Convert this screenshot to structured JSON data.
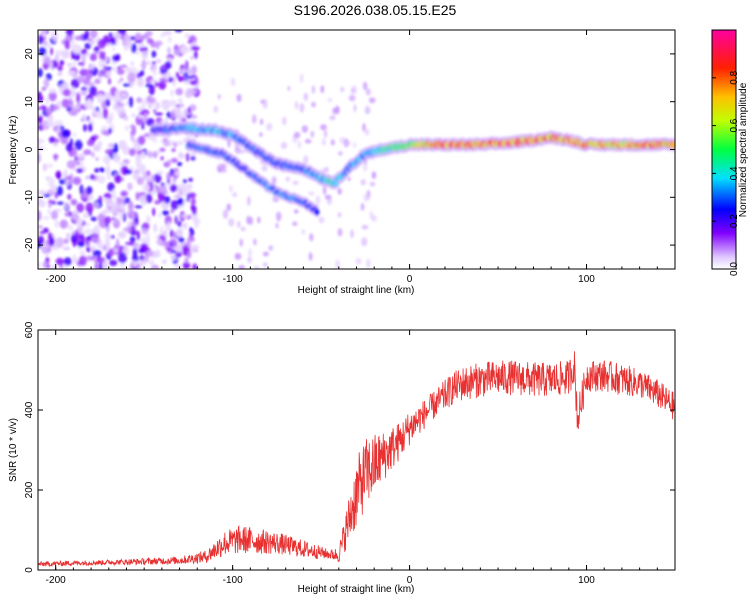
{
  "title": "S196.2026.038.05.15.E25",
  "chart_data": [
    {
      "type": "heatmap",
      "xlabel": "Height of straight line (km)",
      "ylabel": "Frequency (Hz)",
      "xlim": [
        -210,
        150
      ],
      "ylim": [
        -25,
        25
      ],
      "xticks": [
        -200,
        -100,
        0,
        100
      ],
      "yticks": [
        -20,
        -10,
        0,
        10,
        20
      ],
      "colorbar": {
        "label": "Normalized spectral amplitude",
        "range": [
          0,
          1
        ],
        "ticks": [
          "0.0",
          "0.2",
          "0.4",
          "0.6",
          "0.8"
        ],
        "colors": [
          "#ffffff",
          "#d9b3ff",
          "#8000ff",
          "#0000ff",
          "#00ffff",
          "#00ff00",
          "#ffff00",
          "#ff8000",
          "#ff0000",
          "#ff00a0"
        ]
      },
      "ridge": [
        {
          "x": -145,
          "f": 4,
          "amp": 0.25
        },
        {
          "x": -125,
          "f": 4.5,
          "amp": 0.35
        },
        {
          "x": -110,
          "f": 4,
          "amp": 0.4
        },
        {
          "x": -100,
          "f": 3,
          "amp": 0.35
        },
        {
          "x": -88,
          "f": 0,
          "amp": 0.3
        },
        {
          "x": -75,
          "f": -3,
          "amp": 0.3
        },
        {
          "x": -60,
          "f": -4,
          "amp": 0.3
        },
        {
          "x": -50,
          "f": -6,
          "amp": 0.4
        },
        {
          "x": -42,
          "f": -7,
          "amp": 0.45
        },
        {
          "x": -35,
          "f": -4,
          "amp": 0.35
        },
        {
          "x": -25,
          "f": -1,
          "amp": 0.35
        },
        {
          "x": -15,
          "f": 0,
          "amp": 0.45
        },
        {
          "x": 0,
          "f": 1,
          "amp": 0.6
        },
        {
          "x": 20,
          "f": 1,
          "amp": 0.85
        },
        {
          "x": 40,
          "f": 1,
          "amp": 0.8
        },
        {
          "x": 60,
          "f": 1.5,
          "amp": 0.85
        },
        {
          "x": 80,
          "f": 2.5,
          "amp": 0.8
        },
        {
          "x": 90,
          "f": 2,
          "amp": 0.85
        },
        {
          "x": 100,
          "f": 1,
          "amp": 0.8
        },
        {
          "x": 120,
          "f": 1,
          "amp": 0.75
        },
        {
          "x": 140,
          "f": 1,
          "amp": 0.8
        },
        {
          "x": 150,
          "f": 1,
          "amp": 0.8
        }
      ],
      "secondary_ridge": [
        {
          "x": -125,
          "f": 1,
          "amp": 0.3
        },
        {
          "x": -105,
          "f": -1,
          "amp": 0.3
        },
        {
          "x": -90,
          "f": -5,
          "amp": 0.3
        },
        {
          "x": -75,
          "f": -9,
          "amp": 0.35
        },
        {
          "x": -60,
          "f": -11,
          "amp": 0.3
        },
        {
          "x": -52,
          "f": -13,
          "amp": 0.25
        }
      ],
      "noise_region": {
        "x_start": -210,
        "x_end": -120,
        "amp_max": 0.2
      }
    },
    {
      "type": "line",
      "xlabel": "Height of straight line (km)",
      "ylabel": "SNR (10 * v/v)",
      "xlim": [
        -210,
        150
      ],
      "ylim": [
        0,
        600
      ],
      "xticks": [
        -200,
        -100,
        0,
        100
      ],
      "yticks": [
        0,
        200,
        400,
        600
      ],
      "series": [
        {
          "name": "SNR",
          "color": "#e83030",
          "x": [
            -210,
            -190,
            -170,
            -150,
            -130,
            -115,
            -105,
            -95,
            -85,
            -75,
            -65,
            -55,
            -45,
            -40,
            -35,
            -30,
            -25,
            -20,
            -15,
            -10,
            -5,
            0,
            5,
            10,
            15,
            20,
            25,
            30,
            40,
            50,
            60,
            70,
            80,
            90,
            93,
            95,
            100,
            110,
            120,
            130,
            140,
            150
          ],
          "y": [
            15,
            18,
            20,
            22,
            25,
            35,
            70,
            80,
            75,
            70,
            60,
            50,
            40,
            40,
            120,
            200,
            250,
            270,
            290,
            310,
            330,
            360,
            380,
            400,
            420,
            440,
            460,
            470,
            480,
            485,
            485,
            480,
            480,
            485,
            520,
            380,
            490,
            490,
            480,
            470,
            445,
            410
          ],
          "spread": [
            8,
            8,
            8,
            10,
            12,
            20,
            40,
            45,
            40,
            35,
            30,
            25,
            15,
            25,
            70,
            110,
            110,
            100,
            80,
            70,
            60,
            55,
            50,
            45,
            45,
            50,
            50,
            55,
            55,
            55,
            55,
            55,
            55,
            55,
            60,
            60,
            50,
            50,
            50,
            45,
            45,
            45
          ]
        }
      ]
    }
  ]
}
